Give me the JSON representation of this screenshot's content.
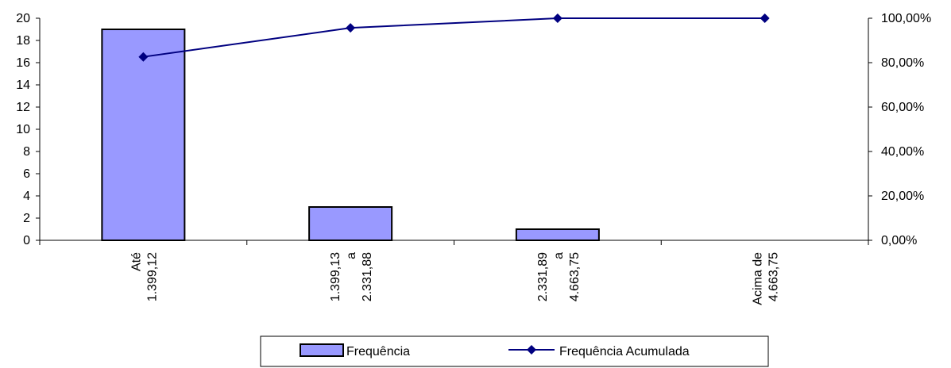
{
  "chart_data": {
    "type": "bar",
    "categories": [
      [
        "Até",
        "1.399,12"
      ],
      [
        "1.399,13",
        "a",
        "2.331,88"
      ],
      [
        "2.331,89",
        "a",
        "4.663,75"
      ],
      [
        "Acima de",
        "4.663,75"
      ]
    ],
    "series": [
      {
        "name": "Frequência",
        "type": "bar",
        "axis": "left",
        "values": [
          19,
          3,
          1,
          0
        ]
      },
      {
        "name": "Frequência Acumulada",
        "type": "line",
        "axis": "right",
        "values": [
          82.61,
          95.65,
          100,
          100
        ]
      }
    ],
    "y_left": {
      "ylim": [
        0,
        20
      ],
      "ticks": [
        "0",
        "2",
        "4",
        "6",
        "8",
        "10",
        "12",
        "14",
        "16",
        "18",
        "20"
      ]
    },
    "y_right": {
      "ylim": [
        0,
        100
      ],
      "ticks": [
        "0,00%",
        "20,00%",
        "40,00%",
        "60,00%",
        "80,00%",
        "100,00%"
      ]
    },
    "grid": false,
    "legend_position": "bottom",
    "colors": {
      "bar_fill": "#9999ff",
      "bar_stroke": "#000000",
      "line": "#000080",
      "marker": "#000080"
    }
  }
}
